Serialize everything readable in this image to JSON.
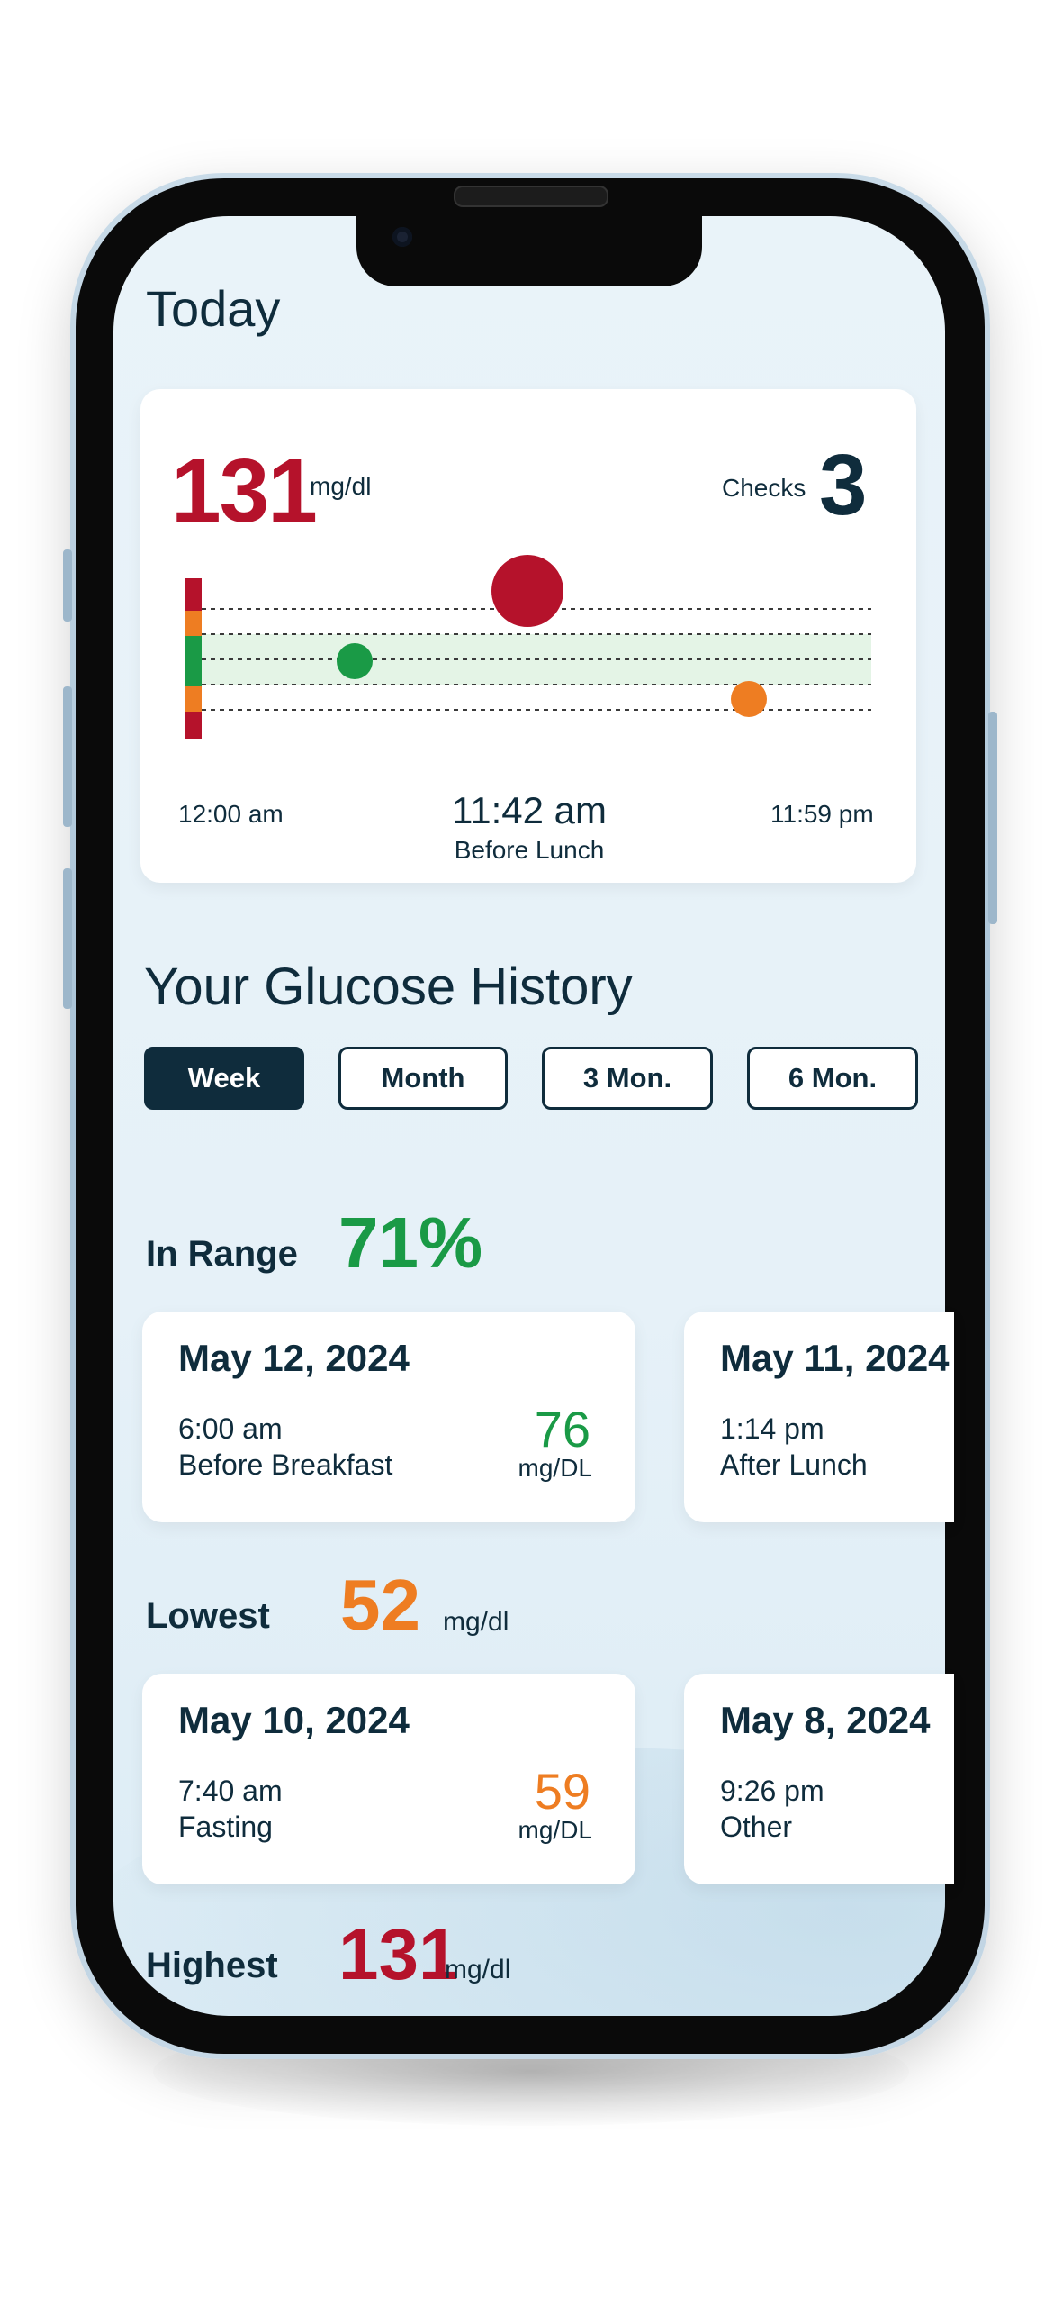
{
  "today": {
    "title": "Today",
    "current_reading": "131",
    "current_unit": "mg/dl",
    "checks_label": "Checks",
    "checks_value": "3",
    "time_start": "12:00 am",
    "time_end": "11:59 pm",
    "selected_time": "11:42 am",
    "selected_meal": "Before Lunch",
    "points": [
      {
        "time": "early morning",
        "value": 76,
        "status": "in-range",
        "color": "#1a9a46"
      },
      {
        "time": "11:42 am",
        "value": 131,
        "status": "high",
        "color": "#b5122b"
      },
      {
        "time": "evening",
        "value": 59,
        "status": "low",
        "color": "#ee7d22"
      }
    ]
  },
  "history": {
    "title": "Your Glucose History",
    "tabs": [
      {
        "label": "Week",
        "active": true
      },
      {
        "label": "Month",
        "active": false
      },
      {
        "label": "3 Mon.",
        "active": false
      },
      {
        "label": "6 Mon.",
        "active": false
      }
    ],
    "in_range": {
      "label": "In Range",
      "value": "71%",
      "color": "#1a9a46",
      "cards": [
        {
          "date": "May 12, 2024",
          "time": "6:00 am",
          "meal": "Before Breakfast",
          "value": "76",
          "unit": "mg/DL"
        },
        {
          "date": "May 11, 2024",
          "time": "1:14 pm",
          "meal": "After Lunch"
        }
      ]
    },
    "lowest": {
      "label": "Lowest",
      "value": "52",
      "unit": "mg/dl",
      "color": "#ee7d22",
      "cards": [
        {
          "date": "May 10, 2024",
          "time": "7:40 am",
          "meal": "Fasting",
          "value": "59",
          "unit": "mg/DL"
        },
        {
          "date": "May 8, 2024",
          "time": "9:26 pm",
          "meal": "Other"
        }
      ]
    },
    "highest": {
      "label": "Highest",
      "value": "131",
      "unit": "mg/dl",
      "color": "#b5122b"
    }
  }
}
